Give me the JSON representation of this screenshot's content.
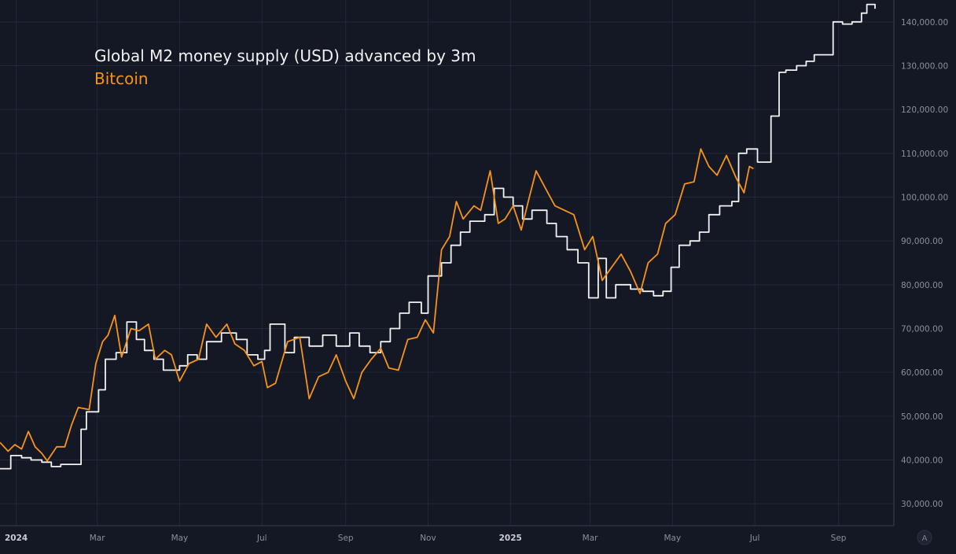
{
  "chart_data": {
    "type": "line",
    "grid": true,
    "legend_position": "top-left",
    "y_axis_position": "right",
    "ylim": [
      25000,
      145000
    ],
    "xlim": [
      "2023-12-20",
      "2025-10-12"
    ],
    "y_ticks": [
      {
        "value": 30000,
        "label": "30,000.00"
      },
      {
        "value": 40000,
        "label": "40,000.00"
      },
      {
        "value": 50000,
        "label": "50,000.00"
      },
      {
        "value": 60000,
        "label": "60,000.00"
      },
      {
        "value": 70000,
        "label": "70,000.00"
      },
      {
        "value": 80000,
        "label": "80,000.00"
      },
      {
        "value": 90000,
        "label": "90,000.00"
      },
      {
        "value": 100000,
        "label": "100,000.00"
      },
      {
        "value": 110000,
        "label": "110,000.00"
      },
      {
        "value": 120000,
        "label": "120,000.00"
      },
      {
        "value": 130000,
        "label": "130,000.00"
      },
      {
        "value": 140000,
        "label": "140,000.00"
      }
    ],
    "x_ticks": [
      {
        "date": "2024-01-01",
        "label": "2024",
        "bold": true
      },
      {
        "date": "2024-03-01",
        "label": "Mar",
        "bold": false
      },
      {
        "date": "2024-05-01",
        "label": "May",
        "bold": false
      },
      {
        "date": "2024-07-01",
        "label": "Jul",
        "bold": false
      },
      {
        "date": "2024-09-01",
        "label": "Sep",
        "bold": false
      },
      {
        "date": "2024-11-01",
        "label": "Nov",
        "bold": false
      },
      {
        "date": "2025-01-01",
        "label": "2025",
        "bold": true
      },
      {
        "date": "2025-03-01",
        "label": "Mar",
        "bold": false
      },
      {
        "date": "2025-05-01",
        "label": "May",
        "bold": false
      },
      {
        "date": "2025-07-01",
        "label": "Jul",
        "bold": false
      },
      {
        "date": "2025-09-01",
        "label": "Sep",
        "bold": false
      }
    ],
    "series": [
      {
        "name": "Global M2 money supply (USD) advanced by 3m",
        "color": "#f2f2f2",
        "step": true,
        "points": [
          [
            "2023-12-20",
            38000
          ],
          [
            "2023-12-28",
            41000
          ],
          [
            "2024-01-05",
            40500
          ],
          [
            "2024-01-12",
            40000
          ],
          [
            "2024-01-20",
            39500
          ],
          [
            "2024-01-27",
            38500
          ],
          [
            "2024-02-03",
            39000
          ],
          [
            "2024-02-10",
            39000
          ],
          [
            "2024-02-18",
            47000
          ],
          [
            "2024-02-22",
            51000
          ],
          [
            "2024-03-02",
            56000
          ],
          [
            "2024-03-07",
            63000
          ],
          [
            "2024-03-15",
            64500
          ],
          [
            "2024-03-23",
            71500
          ],
          [
            "2024-03-30",
            67500
          ],
          [
            "2024-04-05",
            65000
          ],
          [
            "2024-04-12",
            63000
          ],
          [
            "2024-04-19",
            60500
          ],
          [
            "2024-05-01",
            61500
          ],
          [
            "2024-05-07",
            64000
          ],
          [
            "2024-05-14",
            63000
          ],
          [
            "2024-05-21",
            67000
          ],
          [
            "2024-06-01",
            69000
          ],
          [
            "2024-06-12",
            67500
          ],
          [
            "2024-06-20",
            64000
          ],
          [
            "2024-06-28",
            63000
          ],
          [
            "2024-07-03",
            65000
          ],
          [
            "2024-07-07",
            71000
          ],
          [
            "2024-07-18",
            64500
          ],
          [
            "2024-07-25",
            68000
          ],
          [
            "2024-08-05",
            66000
          ],
          [
            "2024-08-15",
            68500
          ],
          [
            "2024-08-25",
            66000
          ],
          [
            "2024-09-04",
            69000
          ],
          [
            "2024-09-11",
            66000
          ],
          [
            "2024-09-19",
            64500
          ],
          [
            "2024-09-27",
            67000
          ],
          [
            "2024-10-04",
            70000
          ],
          [
            "2024-10-11",
            73500
          ],
          [
            "2024-10-18",
            76000
          ],
          [
            "2024-10-27",
            73500
          ],
          [
            "2024-11-01",
            82000
          ],
          [
            "2024-11-06",
            82000
          ],
          [
            "2024-11-11",
            85000
          ],
          [
            "2024-11-18",
            89000
          ],
          [
            "2024-11-25",
            92000
          ],
          [
            "2024-12-02",
            94500
          ],
          [
            "2024-12-13",
            96000
          ],
          [
            "2024-12-20",
            102000
          ],
          [
            "2024-12-27",
            100000
          ],
          [
            "2025-01-03",
            98000
          ],
          [
            "2025-01-10",
            95000
          ],
          [
            "2025-01-17",
            97000
          ],
          [
            "2025-01-28",
            94000
          ],
          [
            "2025-02-04",
            91000
          ],
          [
            "2025-02-12",
            88000
          ],
          [
            "2025-02-20",
            85000
          ],
          [
            "2025-02-28",
            77000
          ],
          [
            "2025-03-07",
            86000
          ],
          [
            "2025-03-13",
            77000
          ],
          [
            "2025-03-20",
            80000
          ],
          [
            "2025-03-31",
            79000
          ],
          [
            "2025-04-09",
            78500
          ],
          [
            "2025-04-17",
            77500
          ],
          [
            "2025-04-24",
            78500
          ],
          [
            "2025-04-30",
            84000
          ],
          [
            "2025-05-06",
            89000
          ],
          [
            "2025-05-14",
            90000
          ],
          [
            "2025-05-21",
            92000
          ],
          [
            "2025-05-28",
            96000
          ],
          [
            "2025-06-05",
            98000
          ],
          [
            "2025-06-14",
            99000
          ],
          [
            "2025-06-19",
            110000
          ],
          [
            "2025-06-25",
            111000
          ],
          [
            "2025-07-03",
            108000
          ],
          [
            "2025-07-10",
            108000
          ],
          [
            "2025-07-13",
            118500
          ],
          [
            "2025-07-19",
            128500
          ],
          [
            "2025-07-24",
            129000
          ],
          [
            "2025-08-01",
            130000
          ],
          [
            "2025-08-08",
            131000
          ],
          [
            "2025-08-14",
            132500
          ],
          [
            "2025-08-28",
            140000
          ],
          [
            "2025-09-04",
            139500
          ],
          [
            "2025-09-11",
            140000
          ],
          [
            "2025-09-18",
            142000
          ],
          [
            "2025-09-22",
            144000
          ],
          [
            "2025-09-28",
            143000
          ]
        ]
      },
      {
        "name": "Bitcoin",
        "color": "#f7931a",
        "step": false,
        "points": [
          [
            "2023-12-20",
            44000
          ],
          [
            "2023-12-26",
            42000
          ],
          [
            "2023-12-31",
            43500
          ],
          [
            "2024-01-05",
            42500
          ],
          [
            "2024-01-10",
            46500
          ],
          [
            "2024-01-15",
            43000
          ],
          [
            "2024-01-20",
            41500
          ],
          [
            "2024-01-24",
            39800
          ],
          [
            "2024-01-31",
            43000
          ],
          [
            "2024-02-06",
            43000
          ],
          [
            "2024-02-11",
            48000
          ],
          [
            "2024-02-16",
            52000
          ],
          [
            "2024-02-24",
            51500
          ],
          [
            "2024-02-29",
            62000
          ],
          [
            "2024-03-05",
            67000
          ],
          [
            "2024-03-09",
            68500
          ],
          [
            "2024-03-14",
            73000
          ],
          [
            "2024-03-19",
            63500
          ],
          [
            "2024-03-26",
            70000
          ],
          [
            "2024-04-01",
            69500
          ],
          [
            "2024-04-08",
            71000
          ],
          [
            "2024-04-13",
            63000
          ],
          [
            "2024-04-20",
            65000
          ],
          [
            "2024-04-25",
            64000
          ],
          [
            "2024-05-01",
            58000
          ],
          [
            "2024-05-08",
            62000
          ],
          [
            "2024-05-15",
            63000
          ],
          [
            "2024-05-21",
            71000
          ],
          [
            "2024-05-28",
            68000
          ],
          [
            "2024-06-05",
            71000
          ],
          [
            "2024-06-11",
            66500
          ],
          [
            "2024-06-18",
            65000
          ],
          [
            "2024-06-25",
            61500
          ],
          [
            "2024-07-01",
            62500
          ],
          [
            "2024-07-05",
            56500
          ],
          [
            "2024-07-11",
            57500
          ],
          [
            "2024-07-20",
            67000
          ],
          [
            "2024-07-29",
            68000
          ],
          [
            "2024-08-05",
            54000
          ],
          [
            "2024-08-12",
            59000
          ],
          [
            "2024-08-19",
            60000
          ],
          [
            "2024-08-25",
            64000
          ],
          [
            "2024-09-01",
            58000
          ],
          [
            "2024-09-07",
            54000
          ],
          [
            "2024-09-13",
            60000
          ],
          [
            "2024-09-20",
            63000
          ],
          [
            "2024-09-27",
            65500
          ],
          [
            "2024-10-03",
            61000
          ],
          [
            "2024-10-10",
            60500
          ],
          [
            "2024-10-17",
            67500
          ],
          [
            "2024-10-24",
            68000
          ],
          [
            "2024-10-30",
            72000
          ],
          [
            "2024-11-05",
            69000
          ],
          [
            "2024-11-11",
            88000
          ],
          [
            "2024-11-17",
            91000
          ],
          [
            "2024-11-22",
            99000
          ],
          [
            "2024-11-27",
            95000
          ],
          [
            "2024-12-05",
            98000
          ],
          [
            "2024-12-10",
            97000
          ],
          [
            "2024-12-17",
            106000
          ],
          [
            "2024-12-23",
            94000
          ],
          [
            "2024-12-28",
            95000
          ],
          [
            "2025-01-03",
            98000
          ],
          [
            "2025-01-09",
            92500
          ],
          [
            "2025-01-15",
            100000
          ],
          [
            "2025-01-20",
            106000
          ],
          [
            "2025-01-27",
            102000
          ],
          [
            "2025-02-03",
            98000
          ],
          [
            "2025-02-10",
            97000
          ],
          [
            "2025-02-17",
            96000
          ],
          [
            "2025-02-25",
            88000
          ],
          [
            "2025-03-03",
            91000
          ],
          [
            "2025-03-10",
            81000
          ],
          [
            "2025-03-17",
            84000
          ],
          [
            "2025-03-24",
            87000
          ],
          [
            "2025-03-31",
            83000
          ],
          [
            "2025-04-07",
            78000
          ],
          [
            "2025-04-13",
            85000
          ],
          [
            "2025-04-20",
            87000
          ],
          [
            "2025-04-26",
            94000
          ],
          [
            "2025-05-03",
            96000
          ],
          [
            "2025-05-10",
            103000
          ],
          [
            "2025-05-17",
            103500
          ],
          [
            "2025-05-22",
            111000
          ],
          [
            "2025-05-28",
            107000
          ],
          [
            "2025-06-03",
            105000
          ],
          [
            "2025-06-10",
            109500
          ],
          [
            "2025-06-17",
            104500
          ],
          [
            "2025-06-23",
            101000
          ],
          [
            "2025-06-27",
            107000
          ],
          [
            "2025-06-30",
            106500
          ]
        ]
      }
    ]
  },
  "legend": {
    "m2_label": "Global M2 money supply (USD) advanced by 3m",
    "btc_label": "Bitcoin"
  },
  "corner_button": {
    "glyph": "A"
  }
}
